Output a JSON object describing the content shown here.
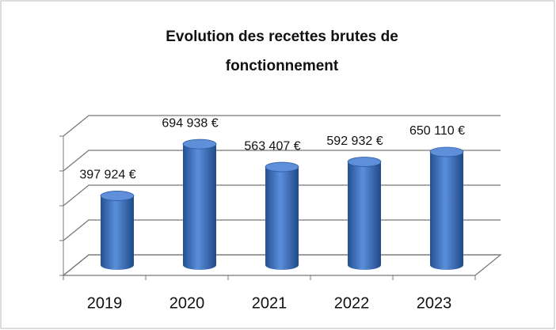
{
  "chart_data": {
    "type": "bar3d",
    "title": [
      "Evolution des recettes brutes de",
      "fonctionnement"
    ],
    "categories": [
      "2019",
      "2020",
      "2021",
      "2022",
      "2023"
    ],
    "values": [
      397924,
      694938,
      563407,
      592932,
      650110
    ],
    "value_labels": [
      "397 924 €",
      "694 938 €",
      "563 407 €",
      "592 932 €",
      "650 110 €"
    ],
    "color": "#3b6fc4",
    "ylim": [
      0,
      800000
    ],
    "yticks": [
      0,
      200000,
      400000,
      600000,
      800000
    ],
    "grid": true
  }
}
